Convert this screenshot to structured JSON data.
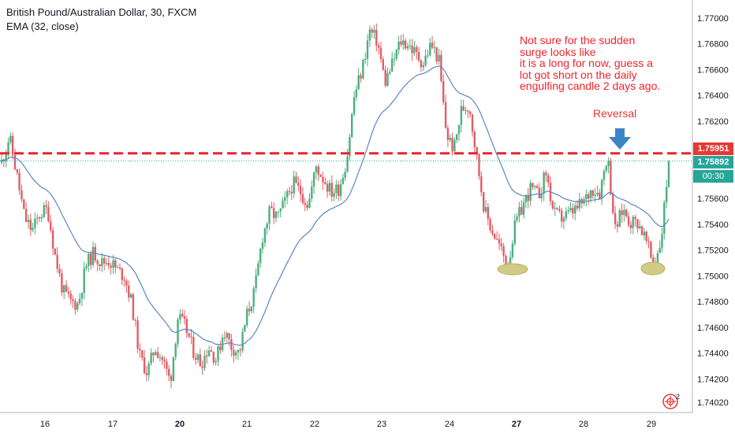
{
  "header": {
    "title": "British Pound/Australian Dollar, 30, FXCM",
    "indicator": "EMA (32, close)"
  },
  "annotations": {
    "note": "Not sure for the sudden\nsurge looks like\nit is a long for now, guess a\nlot got short on the daily\nengulfing candle 2 days ago.",
    "reversal": "Reversal"
  },
  "price_badges": {
    "red_level": "1.75951",
    "last_price": "1.75892",
    "countdown": "00:30"
  },
  "colors": {
    "up": "#4caf7d",
    "down": "#e35d65",
    "ema": "#5b86c4",
    "level_line": "#e8232b",
    "arrow": "#3d84c6",
    "ellipse": "#d1cb83"
  },
  "icons": [
    "settings-icon"
  ],
  "chart_data": {
    "type": "candlestick",
    "title": "British Pound/Australian Dollar, 30, FXCM",
    "ylim": [
      1.7394,
      1.7714
    ],
    "y_ticks": [
      "1.74020",
      "1.74200",
      "1.74400",
      "1.74600",
      "1.74800",
      "1.75000",
      "1.75200",
      "1.75400",
      "1.75600",
      "1.75800",
      "1.76000",
      "1.76200",
      "1.76400",
      "1.76600",
      "1.76800",
      "1.77000"
    ],
    "x_ticks": [
      {
        "label": "16",
        "bold": false
      },
      {
        "label": "17",
        "bold": false
      },
      {
        "label": "20",
        "bold": true
      },
      {
        "label": "21",
        "bold": false
      },
      {
        "label": "22",
        "bold": false
      },
      {
        "label": "23",
        "bold": false
      },
      {
        "label": "24",
        "bold": false
      },
      {
        "label": "27",
        "bold": true
      },
      {
        "label": "28",
        "bold": false
      },
      {
        "label": "29",
        "bold": false
      }
    ],
    "horizontal_levels": [
      {
        "value": 1.75951,
        "style": "dashed",
        "color": "#e8232b"
      },
      {
        "value": 1.75892,
        "style": "dotted",
        "color": "#26a69a"
      }
    ],
    "price_path": [
      [
        0,
        1.7588
      ],
      [
        1,
        1.7608
      ],
      [
        2,
        1.7578
      ],
      [
        3,
        1.7545
      ],
      [
        4,
        1.7535
      ],
      [
        5,
        1.7548
      ],
      [
        6,
        1.7552
      ],
      [
        7,
        1.7515
      ],
      [
        8,
        1.7488
      ],
      [
        9,
        1.748
      ],
      [
        10,
        1.7478
      ],
      [
        11,
        1.7508
      ],
      [
        12,
        1.7518
      ],
      [
        13,
        1.751
      ],
      [
        14,
        1.7512
      ],
      [
        15,
        1.7505
      ],
      [
        16,
        1.75
      ],
      [
        17,
        1.7478
      ],
      [
        18,
        1.7438
      ],
      [
        19,
        1.7425
      ],
      [
        20,
        1.7445
      ],
      [
        21,
        1.7435
      ],
      [
        22,
        1.7418
      ],
      [
        23,
        1.7468
      ],
      [
        24,
        1.746
      ],
      [
        25,
        1.7442
      ],
      [
        26,
        1.7432
      ],
      [
        27,
        1.7445
      ],
      [
        28,
        1.7435
      ],
      [
        29,
        1.7458
      ],
      [
        30,
        1.7445
      ],
      [
        31,
        1.744
      ],
      [
        32,
        1.747
      ],
      [
        33,
        1.7488
      ],
      [
        34,
        1.753
      ],
      [
        35,
        1.755
      ],
      [
        36,
        1.7545
      ],
      [
        37,
        1.7558
      ],
      [
        38,
        1.7572
      ],
      [
        39,
        1.7565
      ],
      [
        40,
        1.7555
      ],
      [
        41,
        1.7585
      ],
      [
        42,
        1.7575
      ],
      [
        43,
        1.7565
      ],
      [
        44,
        1.7568
      ],
      [
        45,
        1.759
      ],
      [
        46,
        1.764
      ],
      [
        47,
        1.766
      ],
      [
        48,
        1.769
      ],
      [
        49,
        1.7682
      ],
      [
        50,
        1.765
      ],
      [
        51,
        1.7665
      ],
      [
        52,
        1.7682
      ],
      [
        53,
        1.768
      ],
      [
        54,
        1.7672
      ],
      [
        55,
        1.7665
      ],
      [
        56,
        1.768
      ],
      [
        57,
        1.7668
      ],
      [
        58,
        1.761
      ],
      [
        59,
        1.7598
      ],
      [
        60,
        1.763
      ],
      [
        61,
        1.7632
      ],
      [
        62,
        1.759
      ],
      [
        63,
        1.755
      ],
      [
        64,
        1.7535
      ],
      [
        65,
        1.7522
      ],
      [
        66,
        1.7508
      ],
      [
        67,
        1.754
      ],
      [
        68,
        1.7555
      ],
      [
        69,
        1.7568
      ],
      [
        70,
        1.7562
      ],
      [
        71,
        1.758
      ],
      [
        72,
        1.7548
      ],
      [
        73,
        1.7545
      ],
      [
        74,
        1.7548
      ],
      [
        75,
        1.7552
      ],
      [
        76,
        1.7558
      ],
      [
        77,
        1.7568
      ],
      [
        78,
        1.7565
      ],
      [
        79,
        1.7595
      ],
      [
        80,
        1.7535
      ],
      [
        81,
        1.7552
      ],
      [
        82,
        1.7542
      ],
      [
        83,
        1.7542
      ],
      [
        84,
        1.7528
      ],
      [
        85,
        1.7508
      ],
      [
        86,
        1.7528
      ],
      [
        87,
        1.7589
      ]
    ],
    "ema": {
      "name": "EMA (32, close)",
      "period": 32
    }
  }
}
